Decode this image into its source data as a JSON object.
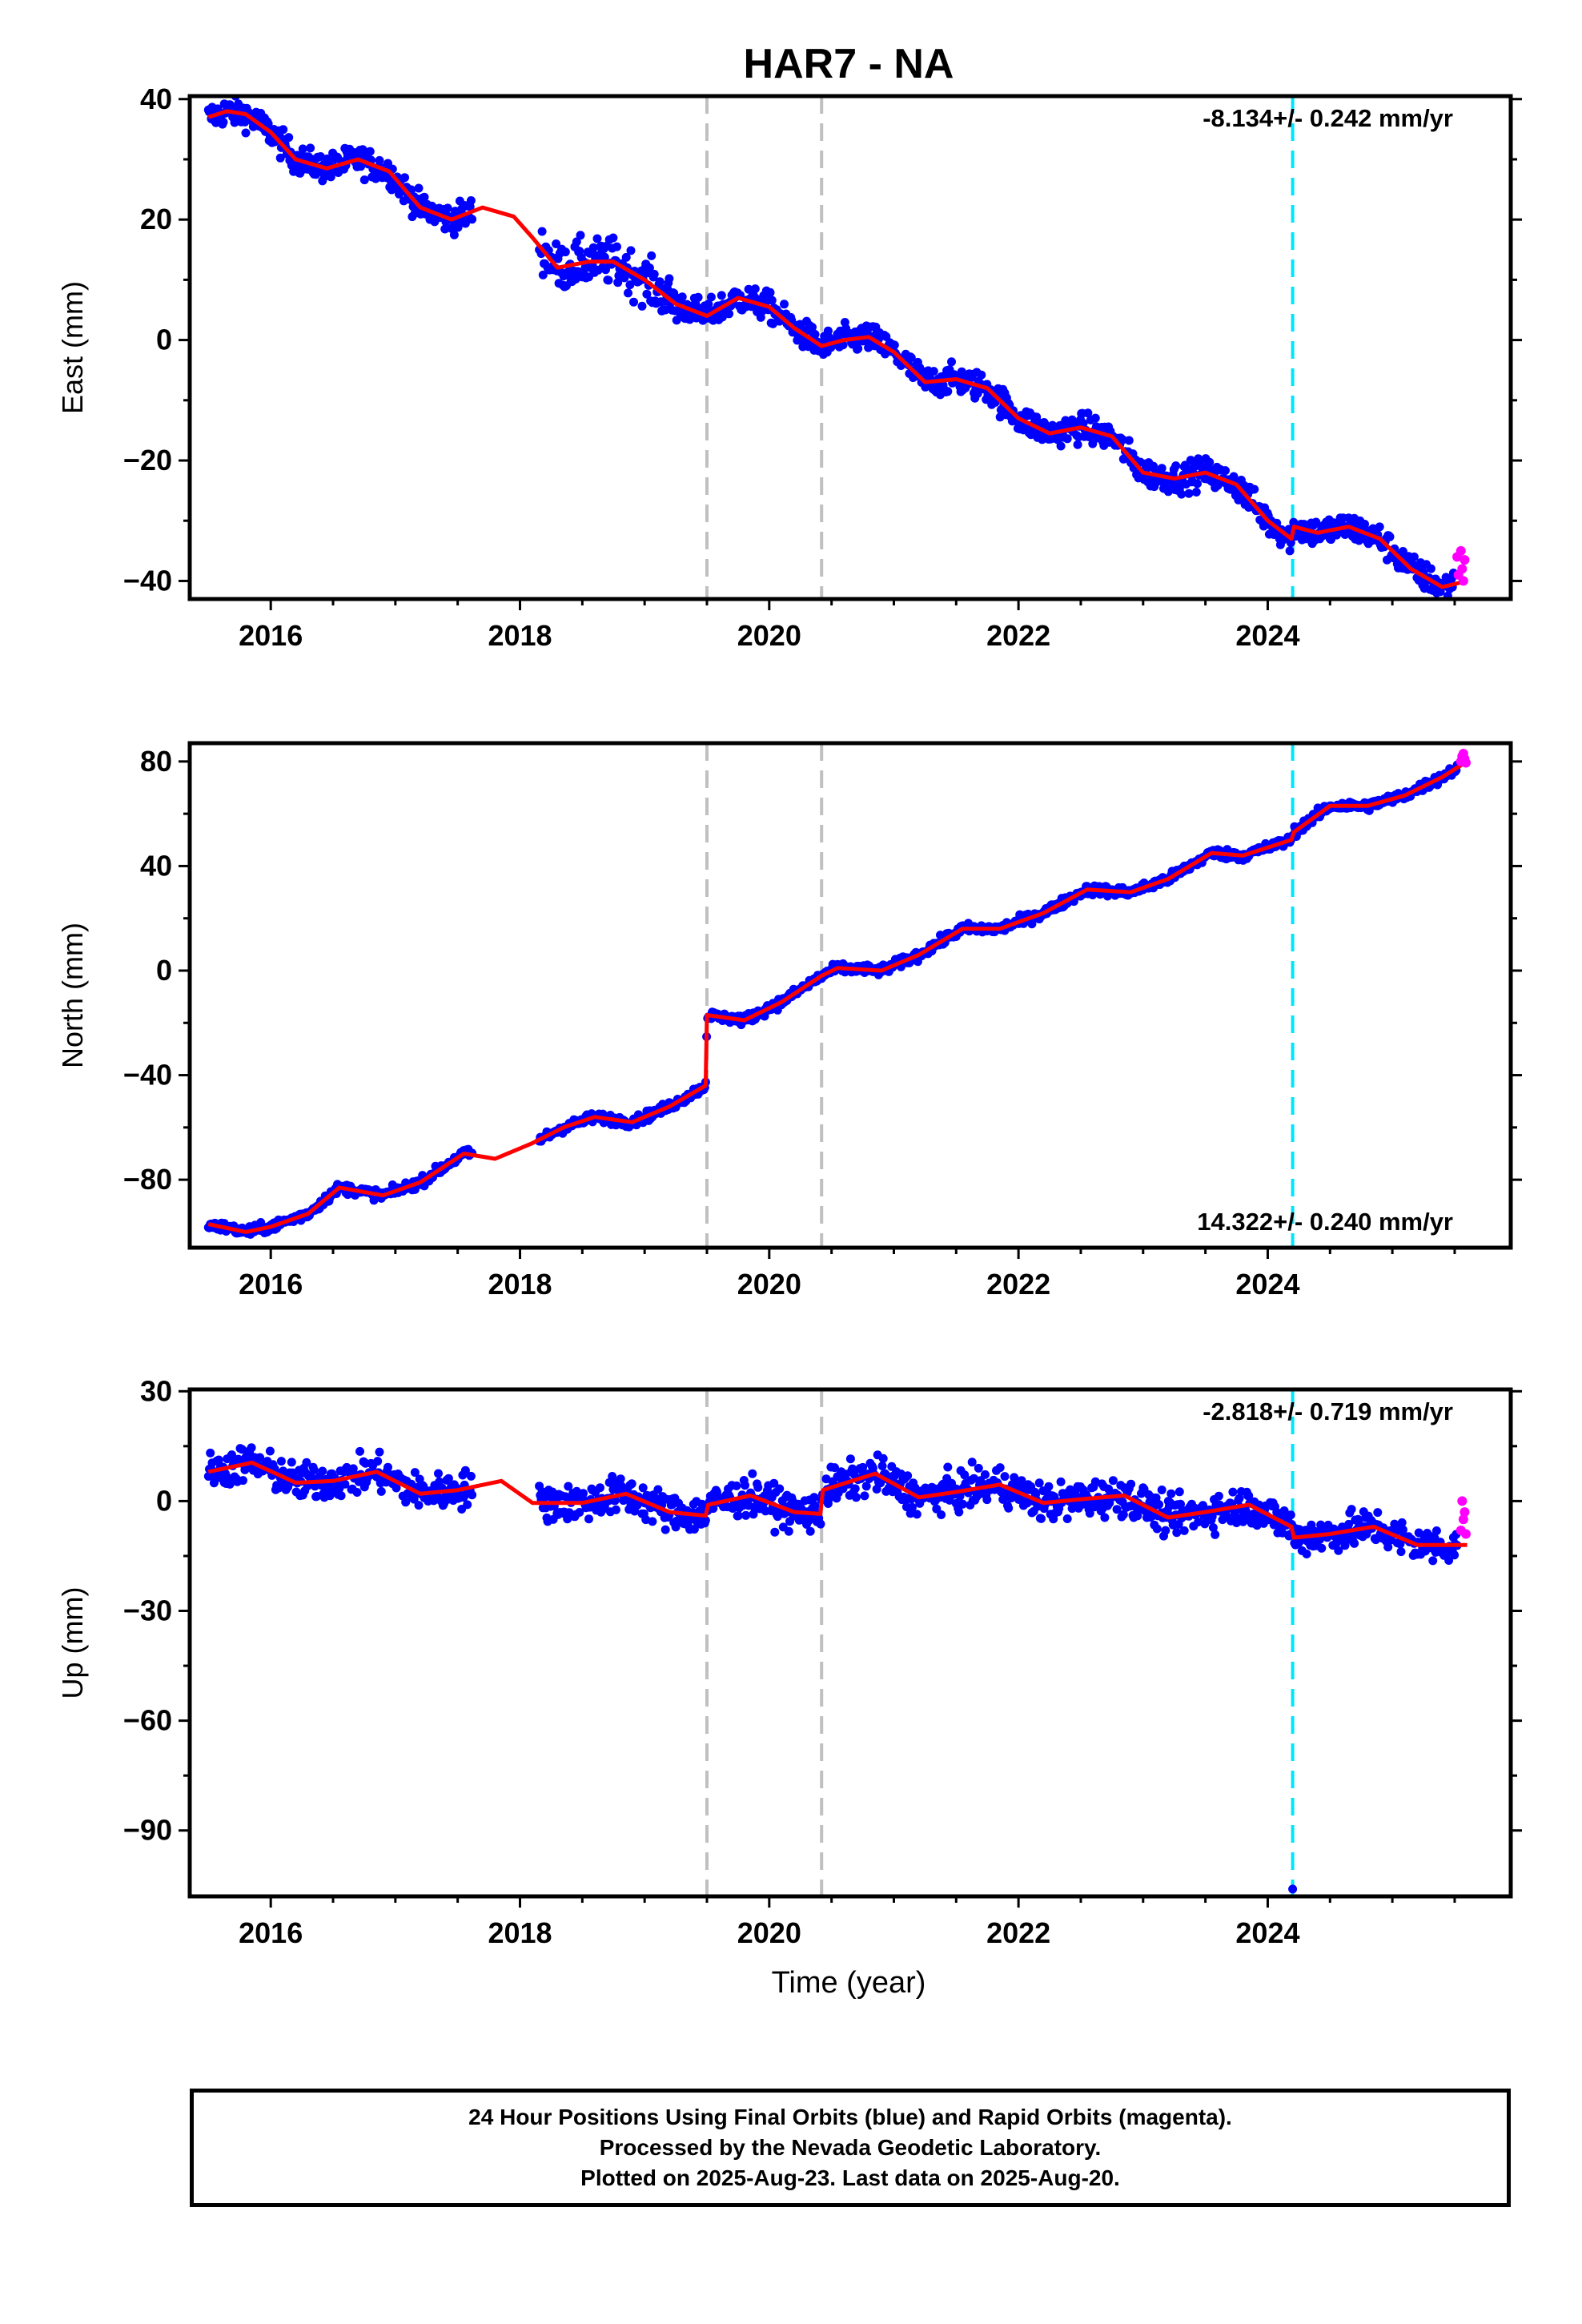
{
  "title": "HAR7 - NA",
  "xlabel": "Time (year)",
  "colors": {
    "final_orbits": "#0000ff",
    "rapid_orbits": "#ff00ff",
    "model_fit": "#ff0000",
    "equipment_change": "#c0c0c0",
    "earthquake": "#00e5ff"
  },
  "chart_data": [
    {
      "type": "scatter",
      "ylabel": "East (mm)",
      "rate_label": "-8.134+/- 0.242 mm/yr",
      "rate_position": "top-right",
      "xlim": [
        2015.35,
        2025.95
      ],
      "ylim": [
        -43,
        40.5
      ],
      "yticks": [
        40,
        20,
        0,
        -20,
        -40
      ],
      "yticklabels": [
        "40",
        "20",
        "0",
        "−20",
        "−40"
      ],
      "xticks": [
        2016,
        2018,
        2020,
        2022,
        2024
      ],
      "xticklabels": [
        "2016",
        "2018",
        "2020",
        "2022",
        "2024"
      ],
      "vlines_gray": [
        2019.5,
        2020.42
      ],
      "vlines_cyan": [
        2024.2
      ],
      "gaps": [
        [
          2017.62,
          2018.15
        ]
      ],
      "fit": {
        "x": [
          2015.5,
          2015.65,
          2015.8,
          2016.0,
          2016.2,
          2016.45,
          2016.7,
          2016.95,
          2017.2,
          2017.45,
          2017.7,
          2017.95,
          2018.1,
          2018.3,
          2018.55,
          2018.75,
          2019.0,
          2019.25,
          2019.5,
          2019.75,
          2020.0,
          2020.2,
          2020.42,
          2020.6,
          2020.8,
          2021.0,
          2021.25,
          2021.5,
          2021.75,
          2022.0,
          2022.25,
          2022.5,
          2022.75,
          2023.0,
          2023.25,
          2023.5,
          2023.75,
          2024.0,
          2024.19,
          2024.21,
          2024.4,
          2024.65,
          2024.9,
          2025.15,
          2025.4,
          2025.6
        ],
        "y": [
          37,
          38,
          37.5,
          34.5,
          30,
          28.5,
          30,
          28,
          22,
          20,
          22,
          20.5,
          17,
          12,
          13,
          13,
          10,
          6,
          4,
          7,
          5.5,
          2,
          -1,
          0,
          0.5,
          -2,
          -7,
          -6.5,
          -8,
          -13,
          -15.5,
          -14.5,
          -16,
          -22,
          -23,
          -22,
          -24,
          -30,
          -33,
          -31,
          -32,
          -31,
          -33,
          -38,
          -41,
          -40
        ]
      },
      "rapid_orbits": {
        "x": [
          2025.52,
          2025.53,
          2025.55,
          2025.56,
          2025.57,
          2025.58
        ],
        "y": [
          -36,
          -39,
          -35,
          -38,
          -40,
          -36.5
        ]
      },
      "noise": 2.0,
      "noise_extra": [
        [
          2018.1,
          2019.3,
          3.2
        ]
      ]
    },
    {
      "type": "scatter",
      "ylabel": "North (mm)",
      "rate_label": "14.322+/- 0.240 mm/yr",
      "rate_position": "bottom-right",
      "xlim": [
        2015.35,
        2025.95
      ],
      "ylim": [
        -106,
        87
      ],
      "yticks": [
        80,
        40,
        0,
        -40,
        -80
      ],
      "yticklabels": [
        "80",
        "40",
        "0",
        "−40",
        "−80"
      ],
      "xticks": [
        2016,
        2018,
        2020,
        2022,
        2024
      ],
      "xticklabels": [
        "2016",
        "2018",
        "2020",
        "2022",
        "2024"
      ],
      "vlines_gray": [
        2019.5,
        2020.42
      ],
      "vlines_cyan": [
        2024.2
      ],
      "gaps": [
        [
          2017.62,
          2018.15
        ]
      ],
      "fit": {
        "x": [
          2015.5,
          2015.8,
          2016.0,
          2016.3,
          2016.55,
          2016.9,
          2017.2,
          2017.55,
          2017.8,
          2018.1,
          2018.35,
          2018.6,
          2018.9,
          2019.2,
          2019.49,
          2019.5,
          2019.8,
          2020.1,
          2020.42,
          2020.55,
          2020.9,
          2021.2,
          2021.55,
          2021.85,
          2022.2,
          2022.55,
          2022.9,
          2023.2,
          2023.55,
          2023.8,
          2024.19,
          2024.21,
          2024.5,
          2024.8,
          2025.1,
          2025.4,
          2025.6
        ],
        "y": [
          -97,
          -100,
          -98,
          -93,
          -83,
          -86,
          -81,
          -70,
          -72,
          -66,
          -60,
          -56,
          -58,
          -52,
          -44,
          -17,
          -19,
          -12,
          -2,
          1,
          0,
          6,
          16,
          16,
          22,
          31,
          30,
          35,
          45,
          44,
          50,
          53,
          63,
          63,
          67,
          74,
          80
        ]
      },
      "rapid_orbits": {
        "x": [
          2025.55,
          2025.56,
          2025.57,
          2025.58,
          2025.59
        ],
        "y": [
          80,
          82,
          83,
          81,
          79.5
        ]
      },
      "noise": 1.6,
      "noise_extra": []
    },
    {
      "type": "scatter",
      "ylabel": "Up (mm)",
      "rate_label": "-2.818+/- 0.719 mm/yr",
      "rate_position": "top-right",
      "xlim": [
        2015.35,
        2025.95
      ],
      "ylim": [
        -108,
        30.5
      ],
      "yticks": [
        30,
        0,
        -30,
        -60,
        -90
      ],
      "yticklabels": [
        "30",
        "0",
        "−30",
        "−60",
        "−90"
      ],
      "xticks": [
        2016,
        2018,
        2020,
        2022,
        2024
      ],
      "xticklabels": [
        "2016",
        "2018",
        "2020",
        "2022",
        "2024"
      ],
      "vlines_gray": [
        2019.5,
        2020.42
      ],
      "vlines_cyan": [
        2024.2
      ],
      "gaps": [
        [
          2017.62,
          2018.15
        ]
      ],
      "fit": {
        "x": [
          2015.5,
          2015.85,
          2016.2,
          2016.5,
          2016.85,
          2017.2,
          2017.5,
          2017.85,
          2018.1,
          2018.5,
          2018.85,
          2019.2,
          2019.49,
          2019.51,
          2019.85,
          2020.2,
          2020.41,
          2020.43,
          2020.85,
          2021.2,
          2021.5,
          2021.85,
          2022.2,
          2022.5,
          2022.85,
          2023.2,
          2023.5,
          2023.85,
          2024.19,
          2024.21,
          2024.5,
          2024.85,
          2025.2,
          2025.6
        ],
        "y": [
          8,
          10.5,
          5,
          5.5,
          8,
          2,
          3,
          5.5,
          -0.5,
          -0.5,
          2,
          -3,
          -4,
          -1,
          1.5,
          -3,
          -3.5,
          3,
          7.5,
          1,
          2.5,
          4.5,
          -0.5,
          0.5,
          1.5,
          -4.5,
          -3,
          -1,
          -7,
          -10,
          -9,
          -7,
          -12,
          -12
        ]
      },
      "rapid_orbits": {
        "x": [
          2025.55,
          2025.56,
          2025.57,
          2025.58,
          2025.59
        ],
        "y": [
          -8,
          0,
          -5,
          -3,
          -9
        ]
      },
      "outliers": [
        [
          2024.2,
          -106
        ]
      ],
      "noise": 4.2,
      "noise_extra": []
    }
  ],
  "footer": {
    "line1": "24 Hour Positions Using Final Orbits (blue) and Rapid Orbits (magenta).",
    "line2": "Processed by the Nevada Geodetic Laboratory.",
    "line3": "Plotted on 2025-Aug-23. Last data on 2025-Aug-20."
  }
}
